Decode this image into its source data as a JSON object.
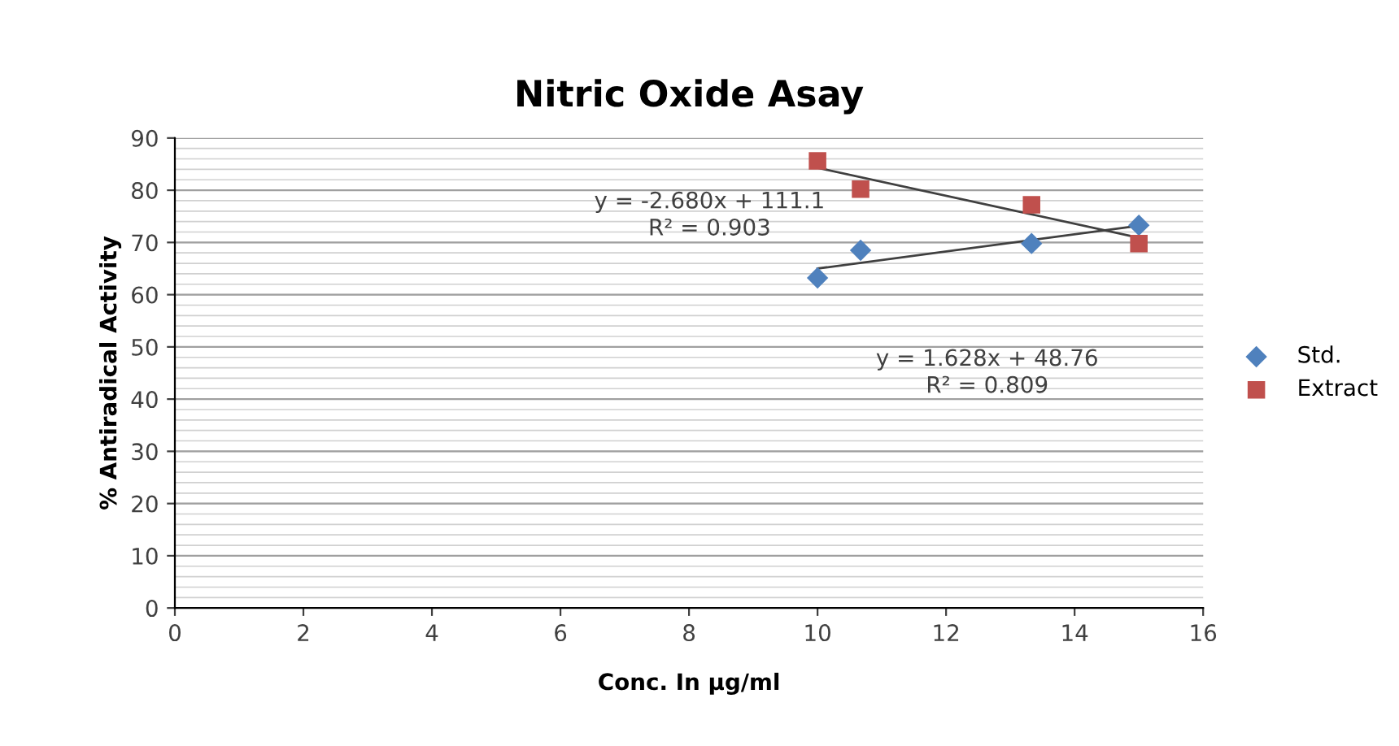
{
  "chart_data": {
    "type": "scatter",
    "title": "Nitric Oxide Asay",
    "xlabel": "Conc. In µg/ml",
    "ylabel": "% Antiradical Activity",
    "xlim": [
      0,
      16
    ],
    "xticks": [
      0,
      2,
      4,
      6,
      8,
      10,
      12,
      14,
      16
    ],
    "ylim": [
      0,
      90
    ],
    "yticks": [
      0,
      10,
      20,
      30,
      40,
      50,
      60,
      70,
      80,
      90
    ],
    "grid": "y",
    "legend": "right",
    "series": [
      {
        "name": "Std.",
        "color": "#4f81bd",
        "marker": "diamond",
        "x": [
          10,
          10.67,
          13.33,
          15
        ],
        "values": [
          63.2,
          68.5,
          69.8,
          73.3
        ]
      },
      {
        "name": "Extract",
        "color": "#c0504d",
        "marker": "square",
        "x": [
          10,
          10.67,
          13.33,
          15
        ],
        "values": [
          85.6,
          80.2,
          77.2,
          69.8
        ]
      },
      {
        "type": "line",
        "color": "#404040",
        "marker": "none",
        "x": [
          10,
          15
        ],
        "values": [
          65.0,
          73.2
        ]
      },
      {
        "type": "line",
        "color": "#404040",
        "marker": "none",
        "x": [
          10,
          15
        ],
        "values": [
          84.3,
          70.9
        ]
      }
    ],
    "annotations": [
      "y = -2.680x + 111.1\nR² = 0.903",
      "y = 1.628x + 48.76\nR² = 0.809"
    ]
  }
}
